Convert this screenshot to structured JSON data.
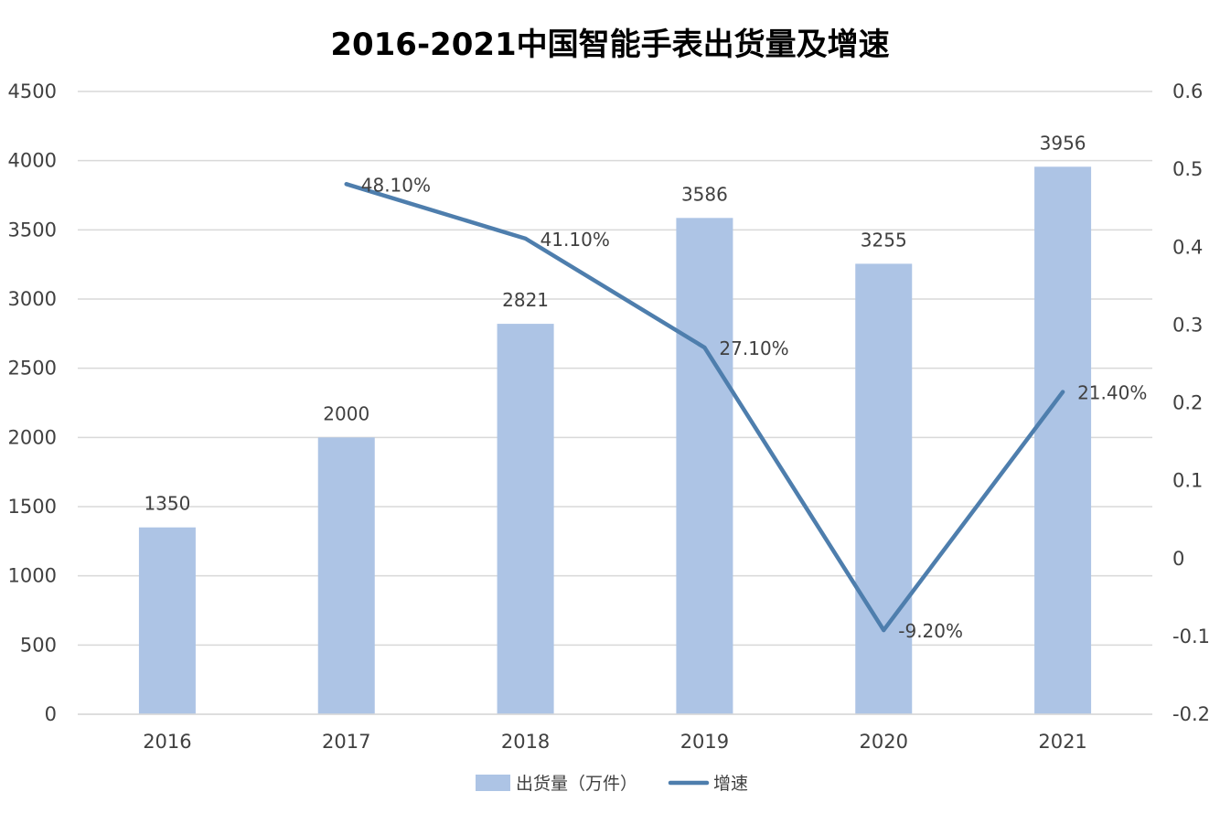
{
  "chart_data": {
    "type": "bar",
    "title": "2016-2021中国智能手表出货量及增速",
    "categories": [
      "2016",
      "2017",
      "2018",
      "2019",
      "2020",
      "2021"
    ],
    "series": [
      {
        "name": "出货量（万件）",
        "type": "bar",
        "axis": "left",
        "color": "#adc4e5",
        "values": [
          1350,
          2000,
          2821,
          3586,
          3255,
          3956
        ],
        "labels": [
          "1350",
          "2000",
          "2821",
          "3586",
          "3255",
          "3956"
        ]
      },
      {
        "name": "增速",
        "type": "line",
        "axis": "right",
        "color": "#4e7ead",
        "values": [
          null,
          0.481,
          0.411,
          0.271,
          -0.092,
          0.214
        ],
        "labels": [
          "",
          "48.10%",
          "41.10%",
          "27.10%",
          "-9.20%",
          "21.40%"
        ]
      }
    ],
    "y_left": {
      "min": 0,
      "max": 4500,
      "ticks": [
        0,
        500,
        1000,
        1500,
        2000,
        2500,
        3000,
        3500,
        4000,
        4500
      ],
      "tick_labels": [
        "0",
        "500",
        "1000",
        "1500",
        "2000",
        "2500",
        "3000",
        "3500",
        "4000",
        "4500"
      ]
    },
    "y_right": {
      "min": -0.2,
      "max": 0.6,
      "ticks": [
        -0.2,
        -0.1,
        0,
        0.1,
        0.2,
        0.3,
        0.4,
        0.5,
        0.6
      ],
      "tick_labels": [
        "-0.2",
        "-0.1",
        "0",
        "0.1",
        "0.2",
        "0.3",
        "0.4",
        "0.5",
        "0.6"
      ]
    },
    "grid": true,
    "gridline_color": "#d9d9d9",
    "legend_position": "bottom"
  }
}
